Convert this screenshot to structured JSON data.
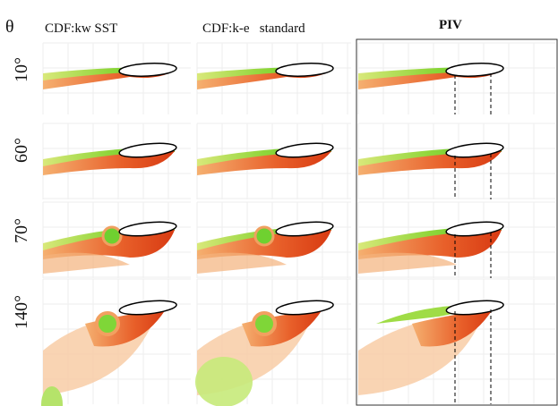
{
  "header": {
    "theta": "θ",
    "columns": [
      "CDF:kw SST",
      "CDF:k-e   standard",
      "PIV"
    ]
  },
  "rows": [
    "10°",
    "60°",
    "70°",
    "140°"
  ]
}
